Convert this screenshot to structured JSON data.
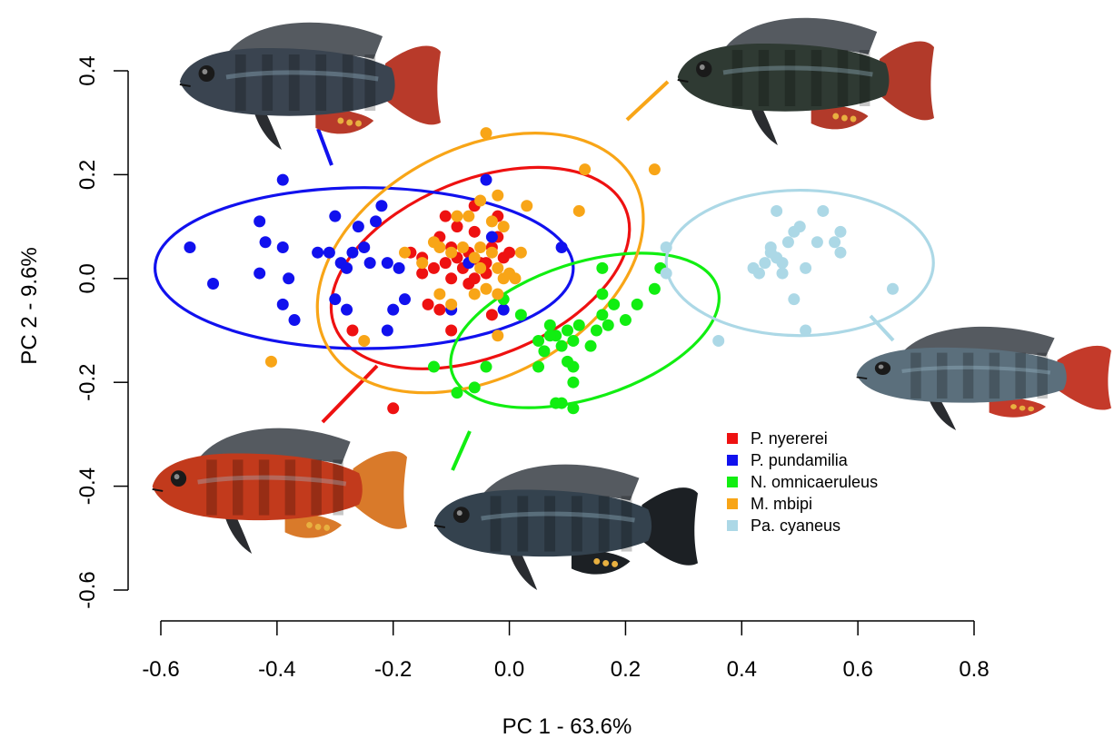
{
  "chart_data": {
    "type": "scatter",
    "title": "",
    "xlabel": "PC 1 - 63.6%",
    "ylabel": "PC 2 - 9.6%",
    "xlim": [
      -0.6,
      0.8
    ],
    "ylim": [
      -0.6,
      0.4
    ],
    "xticks": [
      "-0.6",
      "-0.4",
      "-0.2",
      "0.0",
      "0.2",
      "0.4",
      "0.6",
      "0.8"
    ],
    "yticks": [
      "-0.6",
      "-0.4",
      "-0.2",
      "0.0",
      "0.2",
      "0.4"
    ],
    "legend_position": "bottom-right",
    "series": [
      {
        "name": "P. nyererei",
        "color": "#ee1111",
        "points": [
          [
            -0.17,
            0.05
          ],
          [
            -0.15,
            0.04
          ],
          [
            -0.13,
            0.02
          ],
          [
            -0.11,
            0.03
          ],
          [
            -0.1,
            0.06
          ],
          [
            -0.09,
            0.04
          ],
          [
            -0.08,
            0.02
          ],
          [
            -0.07,
            0.05
          ],
          [
            -0.05,
            0.03
          ],
          [
            -0.04,
            0.01
          ],
          [
            -0.03,
            0.06
          ],
          [
            -0.02,
            0.08
          ],
          [
            -0.01,
            0.04
          ],
          [
            0.0,
            0.05
          ],
          [
            -0.06,
            0.09
          ],
          [
            -0.09,
            0.1
          ],
          [
            -0.11,
            0.12
          ],
          [
            -0.06,
            0.14
          ],
          [
            -0.14,
            -0.05
          ],
          [
            -0.12,
            -0.06
          ],
          [
            -0.03,
            -0.07
          ],
          [
            -0.27,
            -0.1
          ],
          [
            -0.2,
            -0.25
          ],
          [
            -0.1,
            -0.1
          ],
          [
            -0.15,
            0.01
          ],
          [
            -0.07,
            -0.01
          ],
          [
            -0.04,
            0.03
          ],
          [
            -0.12,
            0.08
          ],
          [
            -0.02,
            0.12
          ],
          [
            -0.1,
            0.0
          ],
          [
            -0.06,
            0.0
          ]
        ]
      },
      {
        "name": "P. pundamilia",
        "color": "#1111ee",
        "points": [
          [
            -0.55,
            0.06
          ],
          [
            -0.51,
            -0.01
          ],
          [
            -0.43,
            0.01
          ],
          [
            -0.42,
            0.07
          ],
          [
            -0.39,
            0.06
          ],
          [
            -0.39,
            0.19
          ],
          [
            -0.38,
            0.0
          ],
          [
            -0.37,
            -0.08
          ],
          [
            -0.33,
            0.05
          ],
          [
            -0.31,
            0.05
          ],
          [
            -0.3,
            0.12
          ],
          [
            -0.29,
            0.03
          ],
          [
            -0.28,
            0.02
          ],
          [
            -0.27,
            0.05
          ],
          [
            -0.26,
            0.1
          ],
          [
            -0.25,
            0.06
          ],
          [
            -0.24,
            0.03
          ],
          [
            -0.23,
            0.11
          ],
          [
            -0.22,
            0.14
          ],
          [
            -0.21,
            0.03
          ],
          [
            -0.19,
            0.02
          ],
          [
            -0.18,
            -0.04
          ],
          [
            -0.21,
            -0.1
          ],
          [
            -0.2,
            -0.06
          ],
          [
            -0.28,
            -0.06
          ],
          [
            -0.3,
            -0.04
          ],
          [
            -0.39,
            -0.05
          ],
          [
            -0.43,
            0.11
          ],
          [
            -0.04,
            0.19
          ],
          [
            0.09,
            0.06
          ],
          [
            -0.03,
            0.08
          ],
          [
            -0.1,
            -0.06
          ],
          [
            -0.07,
            0.03
          ],
          [
            -0.01,
            -0.06
          ]
        ]
      },
      {
        "name": "N. omnicaeruleus",
        "color": "#11ee11",
        "points": [
          [
            0.02,
            -0.07
          ],
          [
            0.05,
            -0.12
          ],
          [
            0.06,
            -0.14
          ],
          [
            0.07,
            -0.09
          ],
          [
            0.08,
            -0.11
          ],
          [
            0.09,
            -0.13
          ],
          [
            0.1,
            -0.1
          ],
          [
            0.11,
            -0.12
          ],
          [
            0.1,
            -0.16
          ],
          [
            0.11,
            -0.2
          ],
          [
            0.12,
            -0.09
          ],
          [
            0.14,
            -0.13
          ],
          [
            0.16,
            -0.07
          ],
          [
            0.17,
            -0.09
          ],
          [
            0.18,
            -0.05
          ],
          [
            0.2,
            -0.08
          ],
          [
            0.22,
            -0.05
          ],
          [
            0.25,
            -0.02
          ],
          [
            0.26,
            0.02
          ],
          [
            0.16,
            0.02
          ],
          [
            0.16,
            -0.03
          ],
          [
            0.08,
            -0.24
          ],
          [
            0.09,
            -0.24
          ],
          [
            0.11,
            -0.25
          ],
          [
            0.05,
            -0.17
          ],
          [
            -0.04,
            -0.17
          ],
          [
            -0.06,
            -0.21
          ],
          [
            -0.09,
            -0.22
          ],
          [
            -0.13,
            -0.17
          ],
          [
            -0.01,
            -0.04
          ],
          [
            0.11,
            -0.17
          ],
          [
            0.15,
            -0.1
          ],
          [
            0.07,
            -0.11
          ]
        ]
      },
      {
        "name": "M. mbipi",
        "color": "#f8a517",
        "points": [
          [
            -0.04,
            0.28
          ],
          [
            0.13,
            0.21
          ],
          [
            0.25,
            0.21
          ],
          [
            -0.02,
            0.16
          ],
          [
            -0.05,
            0.15
          ],
          [
            0.03,
            0.14
          ],
          [
            -0.09,
            0.12
          ],
          [
            -0.12,
            0.06
          ],
          [
            -0.1,
            0.05
          ],
          [
            -0.06,
            0.04
          ],
          [
            -0.05,
            0.06
          ],
          [
            -0.03,
            0.05
          ],
          [
            -0.02,
            0.02
          ],
          [
            -0.01,
            0.0
          ],
          [
            0.0,
            0.01
          ],
          [
            -0.12,
            -0.03
          ],
          [
            -0.1,
            -0.05
          ],
          [
            -0.06,
            -0.03
          ],
          [
            -0.04,
            -0.02
          ],
          [
            -0.02,
            -0.11
          ],
          [
            -0.25,
            -0.12
          ],
          [
            -0.41,
            -0.16
          ],
          [
            -0.13,
            0.07
          ],
          [
            -0.07,
            0.12
          ],
          [
            -0.03,
            0.11
          ],
          [
            -0.01,
            0.1
          ],
          [
            0.12,
            0.13
          ],
          [
            -0.18,
            0.05
          ],
          [
            -0.08,
            0.06
          ],
          [
            -0.05,
            0.02
          ],
          [
            -0.02,
            -0.03
          ],
          [
            0.02,
            0.05
          ],
          [
            0.01,
            0.0
          ],
          [
            -0.15,
            0.03
          ]
        ]
      },
      {
        "name": "Pa. cyaneus",
        "color": "#acd8e6",
        "points": [
          [
            0.42,
            0.02
          ],
          [
            0.44,
            0.03
          ],
          [
            0.45,
            0.05
          ],
          [
            0.46,
            0.04
          ],
          [
            0.46,
            0.13
          ],
          [
            0.47,
            0.03
          ],
          [
            0.48,
            0.07
          ],
          [
            0.49,
            0.09
          ],
          [
            0.5,
            0.1
          ],
          [
            0.53,
            0.07
          ],
          [
            0.54,
            0.13
          ],
          [
            0.56,
            0.07
          ],
          [
            0.57,
            0.09
          ],
          [
            0.57,
            0.05
          ],
          [
            0.51,
            0.02
          ],
          [
            0.49,
            -0.04
          ],
          [
            0.51,
            -0.1
          ],
          [
            0.36,
            -0.12
          ],
          [
            0.66,
            -0.02
          ],
          [
            0.27,
            0.06
          ],
          [
            0.27,
            0.01
          ],
          [
            0.45,
            0.06
          ],
          [
            0.47,
            0.01
          ],
          [
            0.43,
            0.01
          ],
          [
            0.46,
            0.04
          ]
        ]
      }
    ],
    "ellipses": [
      {
        "series": "P. nyererei",
        "color": "#ee1111",
        "cx": -0.05,
        "cy": 0.02,
        "rx": 0.27,
        "ry": 0.17,
        "angle": 22
      },
      {
        "series": "P. pundamilia",
        "color": "#1111ee",
        "cx": -0.25,
        "cy": 0.02,
        "rx": 0.36,
        "ry": 0.155,
        "angle": 0
      },
      {
        "series": "N. omnicaeruleus",
        "color": "#11ee11",
        "cx": 0.13,
        "cy": -0.1,
        "rx": 0.24,
        "ry": 0.13,
        "angle": 18
      },
      {
        "series": "M. mbipi",
        "color": "#f8a517",
        "cx": -0.05,
        "cy": 0.03,
        "rx": 0.3,
        "ry": 0.22,
        "angle": 28
      },
      {
        "series": "Pa. cyaneus",
        "color": "#acd8e6",
        "cx": 0.5,
        "cy": 0.03,
        "rx": 0.23,
        "ry": 0.14,
        "angle": 0
      }
    ],
    "fish_images": [
      {
        "series": "P. pundamilia",
        "body": "#3a4450",
        "fin": "#b83a2a",
        "leader_color": "#1111ee"
      },
      {
        "series": "M. mbipi",
        "body": "#2f3a33",
        "fin": "#b23a2a",
        "leader_color": "#f8a517"
      },
      {
        "series": "Pa. cyaneus",
        "body": "#5b6f7c",
        "fin": "#c43a2a",
        "leader_color": "#acd8e6"
      },
      {
        "series": "P. nyererei",
        "body": "#c23a1c",
        "fin": "#d97a2a",
        "leader_color": "#ee1111"
      },
      {
        "series": "N. omnicaeruleus",
        "body": "#34424e",
        "fin": "#1c2024",
        "leader_color": "#11ee11"
      }
    ]
  }
}
